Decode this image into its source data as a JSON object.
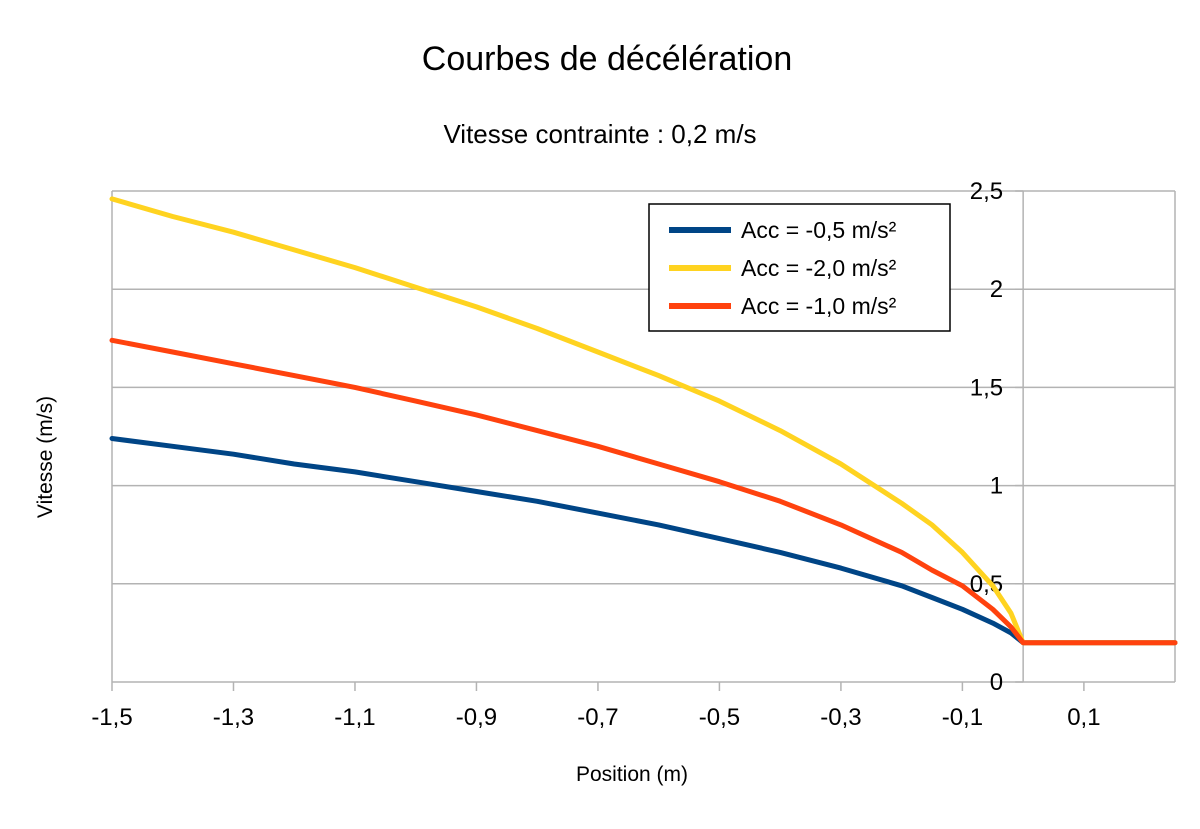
{
  "chart_data": {
    "type": "line",
    "title": "Courbes de décélération",
    "subtitle": "Vitesse contrainte : 0,2 m/s",
    "xlabel": "Position (m)",
    "ylabel": "Vitesse (m/s)",
    "xlim": [
      -1.5,
      0.25
    ],
    "ylim": [
      0,
      2.5
    ],
    "xticks": [
      "-1,5",
      "-1,3",
      "-1,1",
      "-0,9",
      "-0,7",
      "-0,5",
      "-0,3",
      "-0,1",
      "0,1"
    ],
    "xtick_values": [
      -1.5,
      -1.3,
      -1.1,
      -0.9,
      -0.7,
      -0.5,
      -0.3,
      -0.1,
      0.1
    ],
    "yticks": [
      "0",
      "0,5",
      "1",
      "1,5",
      "2",
      "2,5"
    ],
    "ytick_values": [
      0,
      0.5,
      1,
      1.5,
      2,
      2.5
    ],
    "grid": true,
    "legend_position": "top-right",
    "series": [
      {
        "name": "Acc = -0,5 m/s²",
        "color": "#004586",
        "x": [
          -1.5,
          -1.4,
          -1.3,
          -1.2,
          -1.1,
          -1.0,
          -0.9,
          -0.8,
          -0.7,
          -0.6,
          -0.5,
          -0.4,
          -0.3,
          -0.2,
          -0.15,
          -0.1,
          -0.05,
          -0.02,
          0,
          0.25
        ],
        "y": [
          1.24,
          1.2,
          1.16,
          1.11,
          1.07,
          1.02,
          0.97,
          0.92,
          0.86,
          0.8,
          0.73,
          0.66,
          0.58,
          0.49,
          0.43,
          0.37,
          0.3,
          0.25,
          0.2,
          0.2
        ]
      },
      {
        "name": "Acc = -2,0 m/s²",
        "color": "#ffd320",
        "x": [
          -1.5,
          -1.4,
          -1.3,
          -1.2,
          -1.1,
          -1.0,
          -0.9,
          -0.8,
          -0.7,
          -0.6,
          -0.5,
          -0.4,
          -0.3,
          -0.2,
          -0.15,
          -0.1,
          -0.05,
          -0.02,
          0,
          0.25
        ],
        "y": [
          2.46,
          2.37,
          2.29,
          2.2,
          2.11,
          2.01,
          1.91,
          1.8,
          1.68,
          1.56,
          1.43,
          1.28,
          1.11,
          0.91,
          0.8,
          0.66,
          0.49,
          0.35,
          0.2,
          0.2
        ]
      },
      {
        "name": "Acc = -1,0 m/s²",
        "color": "#ff420e",
        "x": [
          -1.5,
          -1.4,
          -1.3,
          -1.2,
          -1.1,
          -1.0,
          -0.9,
          -0.8,
          -0.7,
          -0.6,
          -0.5,
          -0.4,
          -0.3,
          -0.2,
          -0.15,
          -0.1,
          -0.05,
          -0.02,
          0,
          0.25
        ],
        "y": [
          1.74,
          1.68,
          1.62,
          1.56,
          1.5,
          1.43,
          1.36,
          1.28,
          1.2,
          1.11,
          1.02,
          0.92,
          0.8,
          0.66,
          0.57,
          0.49,
          0.37,
          0.28,
          0.2,
          0.2
        ]
      }
    ]
  }
}
